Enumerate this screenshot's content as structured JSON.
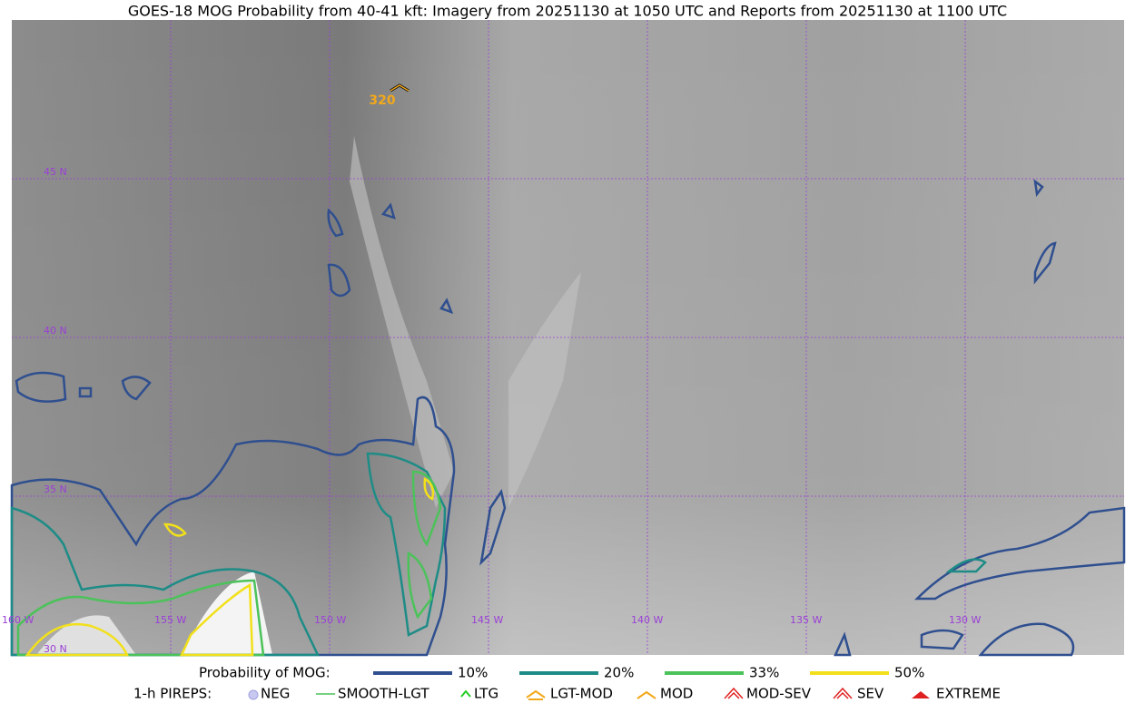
{
  "header": {
    "title": "GOES-18 MOG Probability from 40-41 kft: Imagery from 20251130 at 1050 UTC and Reports from 20251130 at 1100 UTC"
  },
  "map": {
    "lat_labels": [
      "45 N",
      "40 N",
      "35 N",
      "30 N"
    ],
    "lon_labels": [
      "160 W",
      "155 W",
      "150 W",
      "145 W",
      "140 W",
      "135 W",
      "130 W"
    ],
    "report_label": "320"
  },
  "legend": {
    "probability_title": "Probability of MOG:",
    "probability_levels": [
      "10%",
      "20%",
      "33%",
      "50%"
    ],
    "pireps_title": "1-h PIREPS:",
    "pireps": [
      "NEG",
      "SMOOTH-LGT",
      "LTG",
      "LGT-MOD",
      "MOD",
      "MOD-SEV",
      "SEV",
      "EXTREME"
    ]
  }
}
